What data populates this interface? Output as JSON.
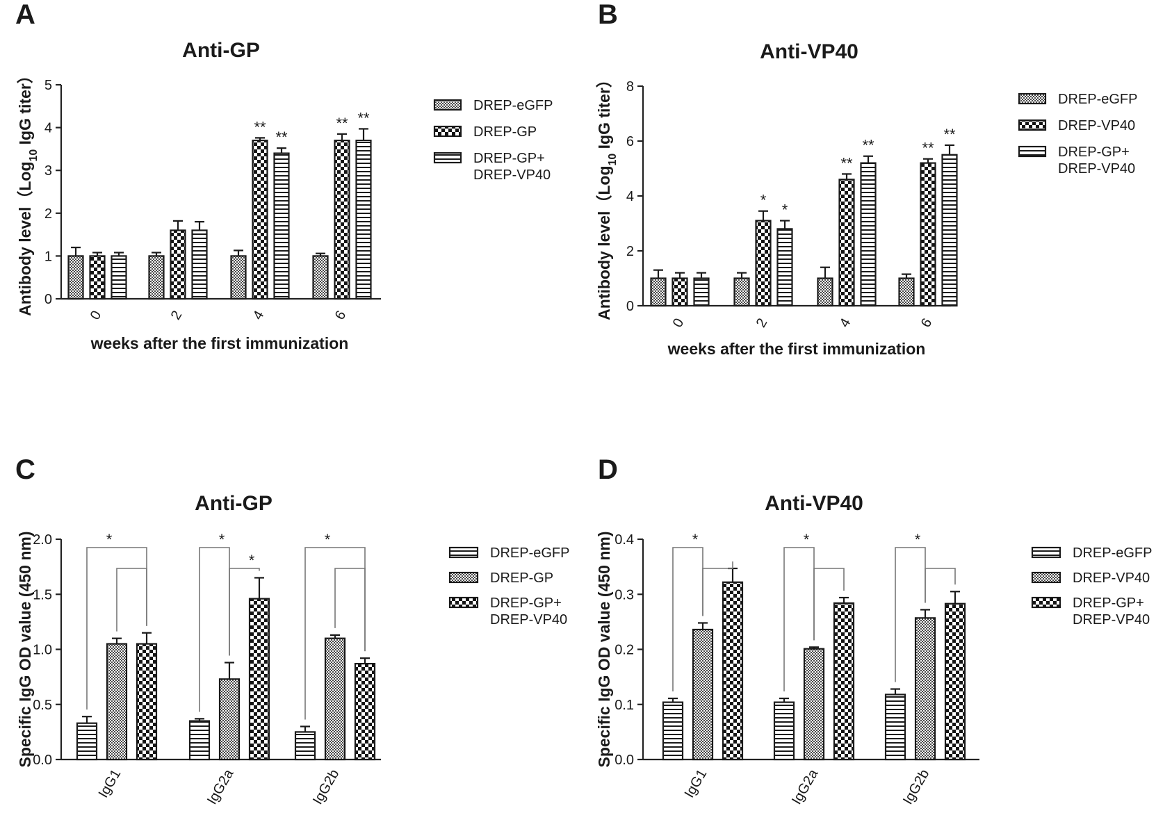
{
  "chart_data": [
    {
      "panel": "A",
      "type": "bar",
      "title": "Anti-GP",
      "xlabel": "weeks after the first immunization",
      "ylabel": "Antibody level（Log10 IgG titer）",
      "ylabel_parts": {
        "before": "Antibody level（Log",
        "sub": "10",
        "after": " IgG titer）"
      },
      "categories": [
        "0",
        "2",
        "4",
        "6"
      ],
      "ylim": [
        0,
        5
      ],
      "yticks": [
        0,
        1,
        2,
        3,
        4,
        5
      ],
      "legend_position": "right",
      "series": [
        {
          "name": "DREP-eGFP",
          "pattern": "fine",
          "values": [
            1.0,
            1.0,
            1.0,
            1.0
          ],
          "errors": [
            0.2,
            0.08,
            0.13,
            0.06
          ],
          "sig": [
            "",
            "",
            "",
            ""
          ]
        },
        {
          "name": "DREP-GP",
          "pattern": "check",
          "values": [
            1.0,
            1.6,
            3.7,
            3.7
          ],
          "errors": [
            0.08,
            0.22,
            0.06,
            0.15
          ],
          "sig": [
            "",
            "",
            "**",
            "**"
          ]
        },
        {
          "name": "DREP-GP+\nDREP-VP40",
          "pattern": "hlines",
          "values": [
            1.0,
            1.6,
            3.4,
            3.7
          ],
          "errors": [
            0.08,
            0.2,
            0.12,
            0.27
          ],
          "sig": [
            "",
            "",
            "**",
            "**"
          ]
        }
      ]
    },
    {
      "panel": "B",
      "type": "bar",
      "title": "Anti-VP40",
      "xlabel": "weeks after the first immunization",
      "ylabel": "Antibody level（Log10 IgG titer）",
      "ylabel_parts": {
        "before": "Antibody level（Log",
        "sub": "10",
        "after": " IgG titer）"
      },
      "categories": [
        "0",
        "2",
        "4",
        "6"
      ],
      "ylim": [
        0,
        8
      ],
      "yticks": [
        0,
        2,
        4,
        6,
        8
      ],
      "legend_position": "right",
      "series": [
        {
          "name": "DREP-eGFP",
          "pattern": "fine",
          "values": [
            1.0,
            1.0,
            1.0,
            1.0
          ],
          "errors": [
            0.3,
            0.2,
            0.4,
            0.15
          ],
          "sig": [
            "",
            "",
            "",
            ""
          ]
        },
        {
          "name": "DREP-VP40",
          "pattern": "check",
          "values": [
            1.0,
            3.1,
            4.6,
            5.2
          ],
          "errors": [
            0.2,
            0.35,
            0.2,
            0.15
          ],
          "sig": [
            "",
            "*",
            "**",
            "**"
          ]
        },
        {
          "name": "DREP-GP+\nDREP-VP40",
          "pattern": "hlines",
          "values": [
            1.0,
            2.8,
            5.2,
            5.5
          ],
          "errors": [
            0.2,
            0.3,
            0.25,
            0.35
          ],
          "sig": [
            "",
            "*",
            "**",
            "**"
          ]
        }
      ]
    },
    {
      "panel": "C",
      "type": "bar",
      "title": "Anti-GP",
      "xlabel": "",
      "ylabel": "Specific IgG OD value (450 nm)",
      "categories": [
        "IgG1",
        "IgG2a",
        "IgG2b"
      ],
      "ylim": [
        0,
        2.0
      ],
      "yticks": [
        "0.0",
        "0.5",
        "1.0",
        "1.5",
        "2.0"
      ],
      "legend_position": "right",
      "series": [
        {
          "name": "DREP-eGFP",
          "pattern": "hlines",
          "values": [
            0.33,
            0.35,
            0.25
          ],
          "errors": [
            0.06,
            0.02,
            0.05
          ]
        },
        {
          "name": "DREP-GP",
          "pattern": "fine",
          "values": [
            1.05,
            0.73,
            1.1
          ],
          "errors": [
            0.05,
            0.15,
            0.03
          ]
        },
        {
          "name": "DREP-GP+\nDREP-VP40",
          "pattern": "check",
          "values": [
            1.05,
            1.46,
            0.87
          ],
          "errors": [
            0.1,
            0.19,
            0.05
          ]
        }
      ],
      "annotations": [
        {
          "category": "IgG1",
          "significance": [
            "*"
          ]
        },
        {
          "category": "IgG2a",
          "significance": [
            "*",
            "*"
          ]
        },
        {
          "category": "IgG2b",
          "significance": [
            "*"
          ]
        }
      ]
    },
    {
      "panel": "D",
      "type": "bar",
      "title": "Anti-VP40",
      "xlabel": "",
      "ylabel": "Specific IgG OD value (450 nm)",
      "categories": [
        "IgG1",
        "IgG2a",
        "IgG2b"
      ],
      "ylim": [
        0,
        0.4
      ],
      "yticks": [
        "0.0",
        "0.1",
        "0.2",
        "0.3",
        "0.4"
      ],
      "legend_position": "right",
      "series": [
        {
          "name": "DREP-eGFP",
          "pattern": "hlines",
          "values": [
            0.104,
            0.104,
            0.118
          ],
          "errors": [
            0.007,
            0.007,
            0.01
          ]
        },
        {
          "name": "DREP-VP40",
          "pattern": "fine",
          "values": [
            0.236,
            0.201,
            0.257
          ],
          "errors": [
            0.012,
            0.003,
            0.015
          ]
        },
        {
          "name": "DREP-GP+\nDREP-VP40",
          "pattern": "check",
          "values": [
            0.322,
            0.284,
            0.283
          ],
          "errors": [
            0.025,
            0.01,
            0.022
          ]
        }
      ],
      "annotations": [
        {
          "category": "IgG1",
          "significance": [
            "*"
          ]
        },
        {
          "category": "IgG2a",
          "significance": [
            "*"
          ]
        },
        {
          "category": "IgG2b",
          "significance": [
            "*"
          ]
        }
      ]
    }
  ]
}
